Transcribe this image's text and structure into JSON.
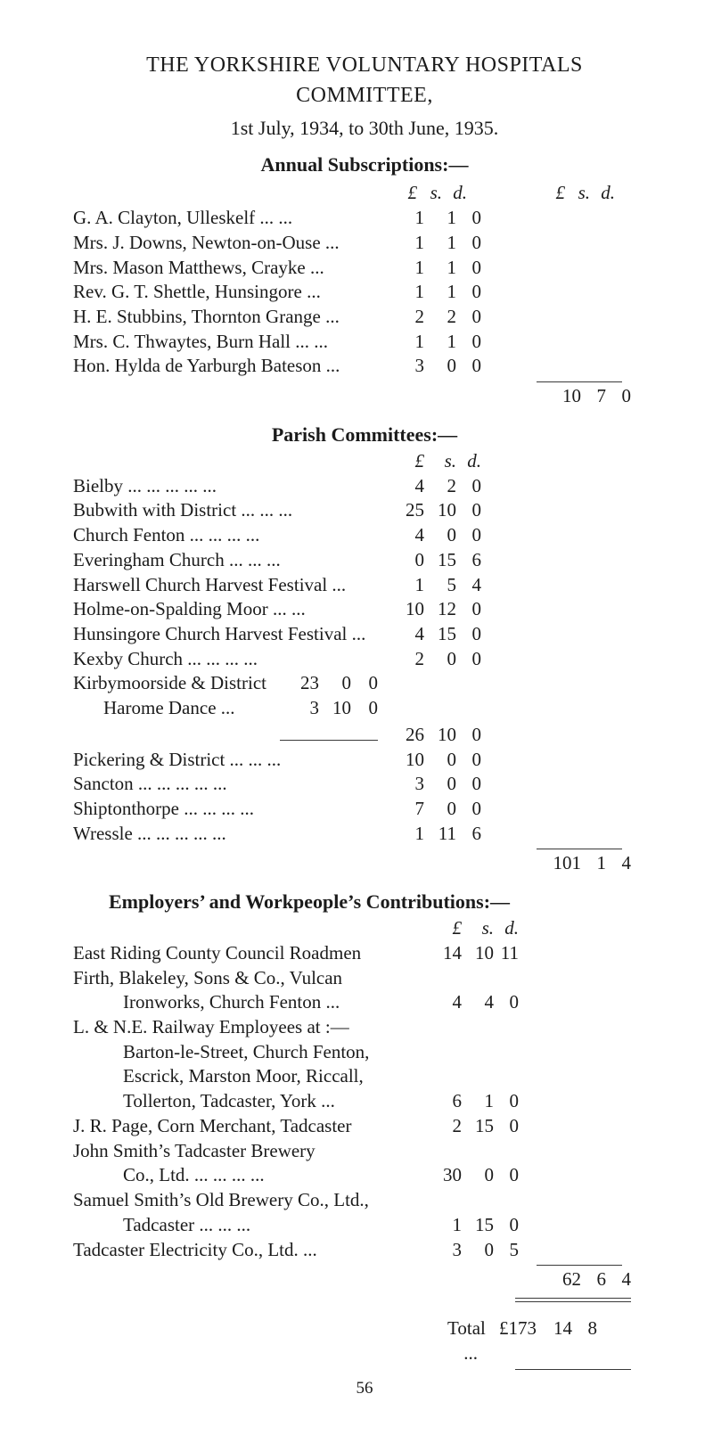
{
  "title_line1": "THE YORKSHIRE VOLUNTARY HOSPITALS",
  "title_line2": "COMMITTEE,",
  "title_line3": "1st July, 1934, to 30th June, 1935.",
  "currency_header": {
    "pound": "£",
    "s": "s.",
    "d": "d."
  },
  "sections": {
    "annual_subs": {
      "heading": "Annual Subscriptions:—",
      "rows": [
        {
          "label": "G. A. Clayton, Ulleskelf   ...   ...",
          "l": "1",
          "s": "1",
          "d": "0"
        },
        {
          "label": "Mrs. J. Downs, Newton-on-Ouse   ...",
          "l": "1",
          "s": "1",
          "d": "0"
        },
        {
          "label": "Mrs. Mason Matthews, Crayke   ...",
          "l": "1",
          "s": "1",
          "d": "0"
        },
        {
          "label": "Rev. G. T. Shettle, Hunsingore   ...",
          "l": "1",
          "s": "1",
          "d": "0"
        },
        {
          "label": "H. E. Stubbins, Thornton Grange   ...",
          "l": "2",
          "s": "2",
          "d": "0"
        },
        {
          "label": "Mrs. C. Thwaytes, Burn Hall ...   ...",
          "l": "1",
          "s": "1",
          "d": "0"
        },
        {
          "label": "Hon. Hylda de Yarburgh Bateson   ...",
          "l": "3",
          "s": "0",
          "d": "0"
        }
      ],
      "total": {
        "l": "10",
        "s": "7",
        "d": "0"
      }
    },
    "parish": {
      "heading": "Parish Committees:—",
      "rows_top": [
        {
          "label": "Bielby   ...   ...   ...   ...   ...",
          "l": "4",
          "s": "2",
          "d": "0"
        },
        {
          "label": "Bubwith with District   ...   ...   ...",
          "l": "25",
          "s": "10",
          "d": "0"
        },
        {
          "label": "Church Fenton   ...   ...   ...   ...",
          "l": "4",
          "s": "0",
          "d": "0"
        },
        {
          "label": "Everingham Church   ...   ...   ...",
          "l": "0",
          "s": "15",
          "d": "6"
        },
        {
          "label": "Harswell Church Harvest Festival   ...",
          "l": "1",
          "s": "5",
          "d": "4"
        },
        {
          "label": "Holme-on-Spalding Moor   ...   ...",
          "l": "10",
          "s": "12",
          "d": "0"
        },
        {
          "label": "Hunsingore Church Harvest Festival ...",
          "l": "4",
          "s": "15",
          "d": "0"
        },
        {
          "label": "Kexby Church   ...   ...   ...   ...",
          "l": "2",
          "s": "0",
          "d": "0"
        }
      ],
      "kirby": {
        "label": "Kirbymoorside & District",
        "l": "23",
        "s": "0",
        "d": "0"
      },
      "harome": {
        "label": "Harome Dance   ...",
        "l": "3",
        "s": "10",
        "d": "0"
      },
      "kirby_sum": {
        "l": "26",
        "s": "10",
        "d": "0"
      },
      "rows_bottom": [
        {
          "label": "Pickering & District   ...   ...   ...",
          "l": "10",
          "s": "0",
          "d": "0"
        },
        {
          "label": "Sancton   ...   ...   ...   ...   ...",
          "l": "3",
          "s": "0",
          "d": "0"
        },
        {
          "label": "Shiptonthorpe   ...   ...   ...   ...",
          "l": "7",
          "s": "0",
          "d": "0"
        },
        {
          "label": "Wressle   ...   ...   ...   ...   ...",
          "l": "1",
          "s": "11",
          "d": "6"
        }
      ],
      "total": {
        "l": "101",
        "s": "1",
        "d": "4"
      }
    },
    "employers": {
      "heading": "Employers’ and Workpeople’s Contributions:—",
      "rows": [
        {
          "lines": [
            "East Riding County Council Roadmen"
          ],
          "l": "14",
          "s": "10",
          "d": "11"
        },
        {
          "lines": [
            "Firth, Blakeley, Sons & Co., Vulcan",
            "Ironworks, Church Fenton   ..."
          ],
          "l": "4",
          "s": "4",
          "d": "0"
        },
        {
          "lines": [
            "L. & N.E. Railway Employees at :—",
            "Barton-le-Street, Church Fenton,",
            "Escrick, Marston Moor, Riccall,",
            "Tollerton, Tadcaster, York   ..."
          ],
          "l": "6",
          "s": "1",
          "d": "0"
        },
        {
          "lines": [
            "J. R. Page, Corn Merchant, Tadcaster"
          ],
          "l": "2",
          "s": "15",
          "d": "0"
        },
        {
          "lines": [
            "John Smith’s Tadcaster Brewery",
            "Co., Ltd.   ...   ...   ...   ..."
          ],
          "l": "30",
          "s": "0",
          "d": "0"
        },
        {
          "lines": [
            "Samuel Smith’s Old Brewery Co., Ltd.,",
            "Tadcaster   ...   ...   ..."
          ],
          "l": "1",
          "s": "15",
          "d": "0"
        },
        {
          "lines": [
            "Tadcaster Electricity Co., Ltd.   ..."
          ],
          "l": "3",
          "s": "0",
          "d": "5"
        }
      ],
      "total": {
        "l": "62",
        "s": "6",
        "d": "4"
      }
    }
  },
  "grand_total": {
    "label": "Total ...",
    "prefix": "£",
    "l": "173",
    "s": "14",
    "d": "8"
  },
  "page_number": "56"
}
